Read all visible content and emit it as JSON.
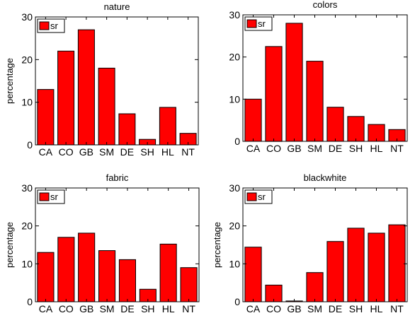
{
  "chart_data": [
    {
      "type": "bar",
      "title": "nature",
      "ylabel": "percentage",
      "ylim": [
        0,
        30
      ],
      "yticks": [
        "0",
        "10",
        "20",
        "30"
      ],
      "categories": [
        "CA",
        "CO",
        "GB",
        "SM",
        "DE",
        "SH",
        "HL",
        "NT"
      ],
      "series": [
        {
          "name": "sr",
          "values": [
            13,
            22,
            27,
            18,
            7.3,
            1.3,
            8.8,
            2.7
          ]
        }
      ],
      "legend": "top-left",
      "colors": {
        "bar": "#ff0000"
      }
    },
    {
      "type": "bar",
      "title": "colors",
      "ylabel": "",
      "ylim": [
        0,
        30
      ],
      "yticks": [
        "0",
        "10",
        "20",
        "30"
      ],
      "categories": [
        "CA",
        "CO",
        "GB",
        "SM",
        "DE",
        "SH",
        "HL",
        "NT"
      ],
      "series": [
        {
          "name": "sr",
          "values": [
            10,
            22.5,
            28,
            19,
            8.1,
            5.9,
            4,
            2.8
          ]
        }
      ],
      "legend": "top-left",
      "colors": {
        "bar": "#ff0000"
      }
    },
    {
      "type": "bar",
      "title": "fabric",
      "ylabel": "percentage",
      "ylim": [
        0,
        30
      ],
      "yticks": [
        "0",
        "10",
        "20",
        "30"
      ],
      "categories": [
        "CA",
        "CO",
        "GB",
        "SM",
        "DE",
        "SH",
        "HL",
        "NT"
      ],
      "series": [
        {
          "name": "sr",
          "values": [
            13,
            17,
            18.1,
            13.5,
            11.1,
            3.3,
            15.2,
            9
          ]
        }
      ],
      "legend": "top-left",
      "colors": {
        "bar": "#ff0000"
      }
    },
    {
      "type": "bar",
      "title": "blackwhite",
      "ylabel": "percentage",
      "ylim": [
        0,
        30
      ],
      "yticks": [
        "0",
        "10",
        "20",
        "30"
      ],
      "categories": [
        "CA",
        "CO",
        "GB",
        "SM",
        "DE",
        "SH",
        "HL",
        "NT"
      ],
      "series": [
        {
          "name": "sr",
          "values": [
            14.4,
            4.4,
            0.2,
            7.7,
            15.9,
            19.4,
            18.1,
            20.3
          ]
        }
      ],
      "legend": "top-left",
      "colors": {
        "bar": "#ff0000"
      }
    }
  ]
}
